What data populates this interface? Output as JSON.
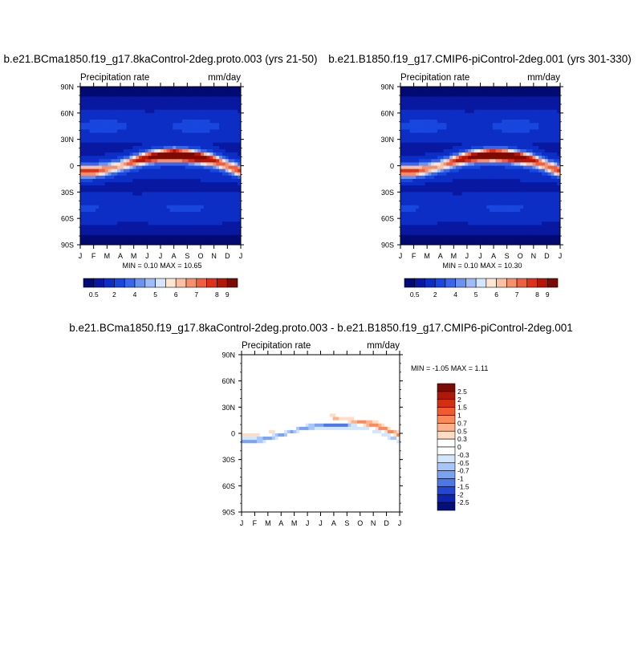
{
  "panels": [
    {
      "title": "b.e21.BCma1850.f19_g17.8kaControl-2deg.proto.003 (yrs 21-50)",
      "left_label": "Precipitation rate",
      "right_label": "mm/day",
      "stats": "MIN =   0.10 MAX =  10.65"
    },
    {
      "title": "b.e21.B1850.f19_g17.CMIP6-piControl-2deg.001 (yrs 301-330)",
      "left_label": "Precipitation rate",
      "right_label": "mm/day",
      "stats": "MIN =   0.10 MAX =  10.30"
    },
    {
      "title": "b.e21.BCma1850.f19_g17.8kaControl-2deg.proto.003 - b.e21.B1850.f19_g17.CMIP6-piControl-2deg.001",
      "left_label": "Precipitation rate",
      "right_label": "mm/day",
      "stats": "MIN =  -1.05 MAX =   1.11"
    }
  ],
  "chart_data": [
    {
      "type": "heatmap",
      "title": "b.e21.BCma1850.f19_g17.8kaControl-2deg.proto.003 (yrs 21-50)",
      "variable": "Precipitation rate",
      "units": "mm/day",
      "x_ticks": [
        "J",
        "F",
        "M",
        "A",
        "M",
        "J",
        "J",
        "A",
        "S",
        "O",
        "N",
        "D",
        "J"
      ],
      "y_ticks": [
        "90N",
        "60N",
        "30N",
        "0",
        "30S",
        "60S",
        "90S"
      ],
      "ylim": [
        -90,
        90
      ],
      "min": 0.1,
      "max": 10.65,
      "colorbar_levels": [
        "0.5",
        "2",
        "4",
        "5",
        "6",
        "7",
        "8",
        "9"
      ],
      "itcz_lat": [
        -6,
        -6,
        -4,
        0,
        5,
        9,
        11,
        12,
        11,
        9,
        6,
        0,
        -6
      ],
      "peak_value": [
        6.5,
        6.5,
        5.5,
        5,
        6.5,
        8,
        9,
        10.65,
        10,
        9,
        7,
        5.5,
        6.5
      ]
    },
    {
      "type": "heatmap",
      "title": "b.e21.B1850.f19_g17.CMIP6-piControl-2deg.001 (yrs 301-330)",
      "variable": "Precipitation rate",
      "units": "mm/day",
      "x_ticks": [
        "J",
        "F",
        "M",
        "A",
        "M",
        "J",
        "J",
        "A",
        "S",
        "O",
        "N",
        "D",
        "J"
      ],
      "y_ticks": [
        "90N",
        "60N",
        "30N",
        "0",
        "30S",
        "60S",
        "90S"
      ],
      "ylim": [
        -90,
        90
      ],
      "min": 0.1,
      "max": 10.3,
      "colorbar_levels": [
        "0.5",
        "2",
        "4",
        "5",
        "6",
        "7",
        "8",
        "9"
      ],
      "itcz_lat": [
        -6,
        -6,
        -4,
        0,
        5,
        9,
        11,
        12,
        11,
        9,
        6,
        0,
        -6
      ],
      "peak_value": [
        6.5,
        6.5,
        5.5,
        5,
        6.5,
        8,
        9,
        10.3,
        9.8,
        9,
        7,
        5.5,
        6.5
      ]
    },
    {
      "type": "heatmap",
      "title": "b.e21.BCma1850.f19_g17.8kaControl-2deg.proto.003 - b.e21.B1850.f19_g17.CMIP6-piControl-2deg.001",
      "variable": "Precipitation rate",
      "units": "mm/day",
      "x_ticks": [
        "J",
        "F",
        "M",
        "A",
        "M",
        "J",
        "J",
        "A",
        "S",
        "O",
        "N",
        "D",
        "J"
      ],
      "y_ticks": [
        "90N",
        "60N",
        "30N",
        "0",
        "30S",
        "60S",
        "90S"
      ],
      "ylim": [
        -90,
        90
      ],
      "min": -1.05,
      "max": 1.11,
      "colorbar_levels": [
        "2.5",
        "2",
        "1.5",
        "1",
        "0.7",
        "0.5",
        "0.3",
        "0",
        "-0.3",
        "-0.5",
        "-0.7",
        "-1",
        "-1.5",
        "-2",
        "-2.5"
      ]
    }
  ],
  "colors": {
    "seq": [
      "#020a73",
      "#0818a0",
      "#0c2ec4",
      "#1747de",
      "#3a66ec",
      "#6a92f2",
      "#9dbcf8",
      "#d4e6ff",
      "#ffe6d2",
      "#fbbfa2",
      "#f68f6c",
      "#ef5e3f",
      "#dd3219",
      "#b61606",
      "#7c0b04"
    ],
    "div": [
      "#7c0b04",
      "#ad1808",
      "#d4300f",
      "#f05c2e",
      "#fa8a5a",
      "#fcb38c",
      "#ffdcc4",
      "#ffffff",
      "#ffffff",
      "#d3e6ff",
      "#a6c6fb",
      "#7aa2f2",
      "#4c78e6",
      "#2446d4",
      "#0d25ad",
      "#03107a"
    ]
  }
}
